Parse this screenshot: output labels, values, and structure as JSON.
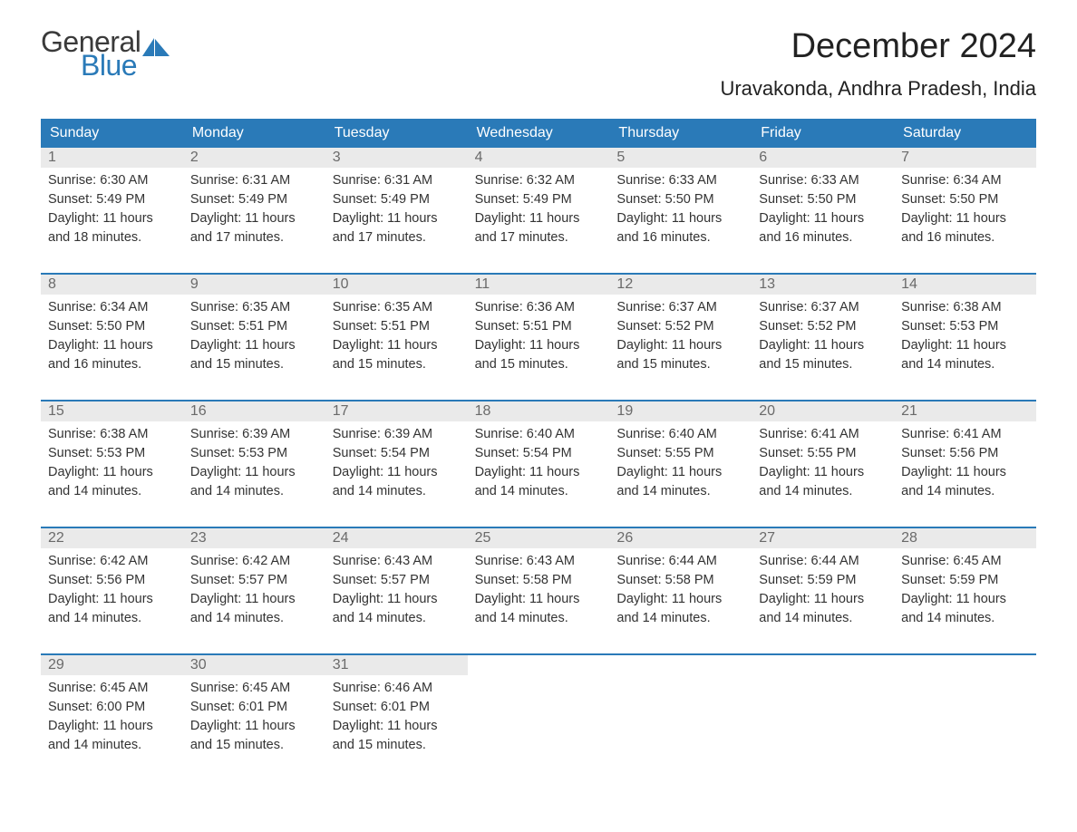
{
  "logo": {
    "text_general": "General",
    "text_blue": "Blue",
    "shape_color": "#2a7ab8"
  },
  "title": "December 2024",
  "location": "Uravakonda, Andhra Pradesh, India",
  "colors": {
    "header_bg": "#2a7ab8",
    "header_text": "#ffffff",
    "day_number_bg": "#eaeaea",
    "day_number_color": "#6a6a6a",
    "body_text": "#333333",
    "week_border": "#2a7ab8",
    "logo_blue": "#2a7ab8",
    "logo_gray": "#3a3a3a"
  },
  "day_names": [
    "Sunday",
    "Monday",
    "Tuesday",
    "Wednesday",
    "Thursday",
    "Friday",
    "Saturday"
  ],
  "weeks": [
    [
      {
        "n": "1",
        "sunrise": "Sunrise: 6:30 AM",
        "sunset": "Sunset: 5:49 PM",
        "dl1": "Daylight: 11 hours",
        "dl2": "and 18 minutes."
      },
      {
        "n": "2",
        "sunrise": "Sunrise: 6:31 AM",
        "sunset": "Sunset: 5:49 PM",
        "dl1": "Daylight: 11 hours",
        "dl2": "and 17 minutes."
      },
      {
        "n": "3",
        "sunrise": "Sunrise: 6:31 AM",
        "sunset": "Sunset: 5:49 PM",
        "dl1": "Daylight: 11 hours",
        "dl2": "and 17 minutes."
      },
      {
        "n": "4",
        "sunrise": "Sunrise: 6:32 AM",
        "sunset": "Sunset: 5:49 PM",
        "dl1": "Daylight: 11 hours",
        "dl2": "and 17 minutes."
      },
      {
        "n": "5",
        "sunrise": "Sunrise: 6:33 AM",
        "sunset": "Sunset: 5:50 PM",
        "dl1": "Daylight: 11 hours",
        "dl2": "and 16 minutes."
      },
      {
        "n": "6",
        "sunrise": "Sunrise: 6:33 AM",
        "sunset": "Sunset: 5:50 PM",
        "dl1": "Daylight: 11 hours",
        "dl2": "and 16 minutes."
      },
      {
        "n": "7",
        "sunrise": "Sunrise: 6:34 AM",
        "sunset": "Sunset: 5:50 PM",
        "dl1": "Daylight: 11 hours",
        "dl2": "and 16 minutes."
      }
    ],
    [
      {
        "n": "8",
        "sunrise": "Sunrise: 6:34 AM",
        "sunset": "Sunset: 5:50 PM",
        "dl1": "Daylight: 11 hours",
        "dl2": "and 16 minutes."
      },
      {
        "n": "9",
        "sunrise": "Sunrise: 6:35 AM",
        "sunset": "Sunset: 5:51 PM",
        "dl1": "Daylight: 11 hours",
        "dl2": "and 15 minutes."
      },
      {
        "n": "10",
        "sunrise": "Sunrise: 6:35 AM",
        "sunset": "Sunset: 5:51 PM",
        "dl1": "Daylight: 11 hours",
        "dl2": "and 15 minutes."
      },
      {
        "n": "11",
        "sunrise": "Sunrise: 6:36 AM",
        "sunset": "Sunset: 5:51 PM",
        "dl1": "Daylight: 11 hours",
        "dl2": "and 15 minutes."
      },
      {
        "n": "12",
        "sunrise": "Sunrise: 6:37 AM",
        "sunset": "Sunset: 5:52 PM",
        "dl1": "Daylight: 11 hours",
        "dl2": "and 15 minutes."
      },
      {
        "n": "13",
        "sunrise": "Sunrise: 6:37 AM",
        "sunset": "Sunset: 5:52 PM",
        "dl1": "Daylight: 11 hours",
        "dl2": "and 15 minutes."
      },
      {
        "n": "14",
        "sunrise": "Sunrise: 6:38 AM",
        "sunset": "Sunset: 5:53 PM",
        "dl1": "Daylight: 11 hours",
        "dl2": "and 14 minutes."
      }
    ],
    [
      {
        "n": "15",
        "sunrise": "Sunrise: 6:38 AM",
        "sunset": "Sunset: 5:53 PM",
        "dl1": "Daylight: 11 hours",
        "dl2": "and 14 minutes."
      },
      {
        "n": "16",
        "sunrise": "Sunrise: 6:39 AM",
        "sunset": "Sunset: 5:53 PM",
        "dl1": "Daylight: 11 hours",
        "dl2": "and 14 minutes."
      },
      {
        "n": "17",
        "sunrise": "Sunrise: 6:39 AM",
        "sunset": "Sunset: 5:54 PM",
        "dl1": "Daylight: 11 hours",
        "dl2": "and 14 minutes."
      },
      {
        "n": "18",
        "sunrise": "Sunrise: 6:40 AM",
        "sunset": "Sunset: 5:54 PM",
        "dl1": "Daylight: 11 hours",
        "dl2": "and 14 minutes."
      },
      {
        "n": "19",
        "sunrise": "Sunrise: 6:40 AM",
        "sunset": "Sunset: 5:55 PM",
        "dl1": "Daylight: 11 hours",
        "dl2": "and 14 minutes."
      },
      {
        "n": "20",
        "sunrise": "Sunrise: 6:41 AM",
        "sunset": "Sunset: 5:55 PM",
        "dl1": "Daylight: 11 hours",
        "dl2": "and 14 minutes."
      },
      {
        "n": "21",
        "sunrise": "Sunrise: 6:41 AM",
        "sunset": "Sunset: 5:56 PM",
        "dl1": "Daylight: 11 hours",
        "dl2": "and 14 minutes."
      }
    ],
    [
      {
        "n": "22",
        "sunrise": "Sunrise: 6:42 AM",
        "sunset": "Sunset: 5:56 PM",
        "dl1": "Daylight: 11 hours",
        "dl2": "and 14 minutes."
      },
      {
        "n": "23",
        "sunrise": "Sunrise: 6:42 AM",
        "sunset": "Sunset: 5:57 PM",
        "dl1": "Daylight: 11 hours",
        "dl2": "and 14 minutes."
      },
      {
        "n": "24",
        "sunrise": "Sunrise: 6:43 AM",
        "sunset": "Sunset: 5:57 PM",
        "dl1": "Daylight: 11 hours",
        "dl2": "and 14 minutes."
      },
      {
        "n": "25",
        "sunrise": "Sunrise: 6:43 AM",
        "sunset": "Sunset: 5:58 PM",
        "dl1": "Daylight: 11 hours",
        "dl2": "and 14 minutes."
      },
      {
        "n": "26",
        "sunrise": "Sunrise: 6:44 AM",
        "sunset": "Sunset: 5:58 PM",
        "dl1": "Daylight: 11 hours",
        "dl2": "and 14 minutes."
      },
      {
        "n": "27",
        "sunrise": "Sunrise: 6:44 AM",
        "sunset": "Sunset: 5:59 PM",
        "dl1": "Daylight: 11 hours",
        "dl2": "and 14 minutes."
      },
      {
        "n": "28",
        "sunrise": "Sunrise: 6:45 AM",
        "sunset": "Sunset: 5:59 PM",
        "dl1": "Daylight: 11 hours",
        "dl2": "and 14 minutes."
      }
    ],
    [
      {
        "n": "29",
        "sunrise": "Sunrise: 6:45 AM",
        "sunset": "Sunset: 6:00 PM",
        "dl1": "Daylight: 11 hours",
        "dl2": "and 14 minutes."
      },
      {
        "n": "30",
        "sunrise": "Sunrise: 6:45 AM",
        "sunset": "Sunset: 6:01 PM",
        "dl1": "Daylight: 11 hours",
        "dl2": "and 15 minutes."
      },
      {
        "n": "31",
        "sunrise": "Sunrise: 6:46 AM",
        "sunset": "Sunset: 6:01 PM",
        "dl1": "Daylight: 11 hours",
        "dl2": "and 15 minutes."
      },
      null,
      null,
      null,
      null
    ]
  ]
}
